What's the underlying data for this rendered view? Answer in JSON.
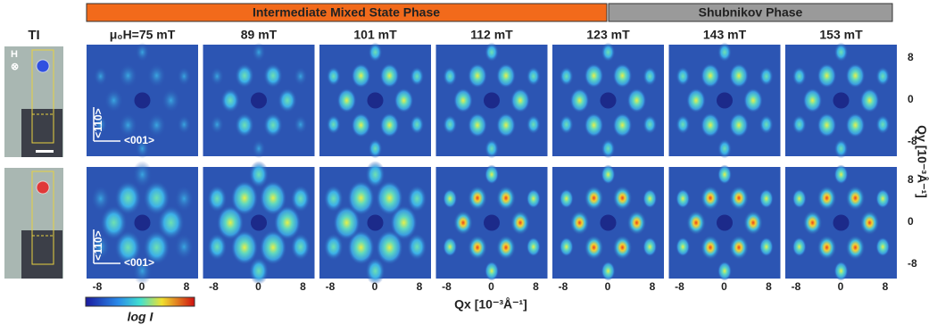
{
  "banners": [
    "Intermediate Mixed State Phase",
    "Shubnikov Phase"
  ],
  "photo_label": "TI",
  "field_marker": "H",
  "field_symbol": "⊗",
  "fields": [
    "μ₀H=75 mT",
    "89 mT",
    "101 mT",
    "112 mT",
    "123 mT",
    "143 mT",
    "153 mT"
  ],
  "directions": [
    "<110>",
    "<001>"
  ],
  "x_ticks": [
    "-8",
    "0",
    "8"
  ],
  "y_ticks": [
    "8",
    "0",
    "-8"
  ],
  "x_axis_label": "Qx [10⁻³Å⁻¹]",
  "y_axis_label": "Qy [10⁻³Å⁻¹]",
  "colorbar_label": "log I"
}
